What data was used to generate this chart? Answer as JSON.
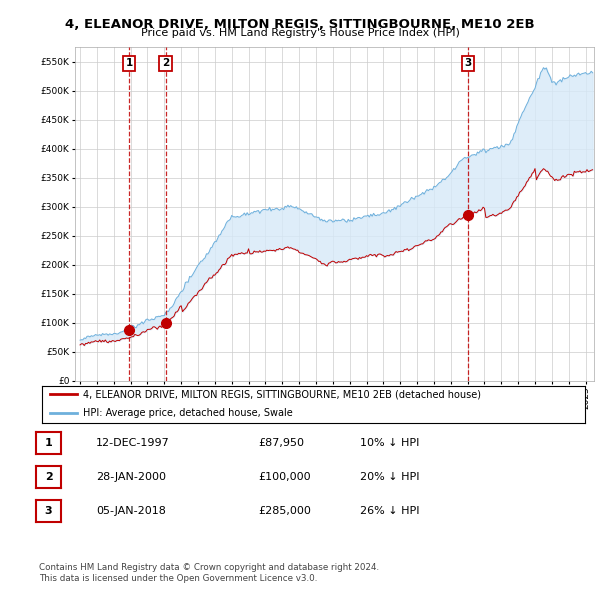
{
  "title_line1": "4, ELEANOR DRIVE, MILTON REGIS, SITTINGBOURNE, ME10 2EB",
  "title_line2": "Price paid vs. HM Land Registry's House Price Index (HPI)",
  "hpi_color": "#6EB0DC",
  "hpi_fill_color": "#D6E9F8",
  "price_color": "#C00000",
  "vline_color": "#C00000",
  "background_color": "#FFFFFF",
  "grid_color": "#CCCCCC",
  "purchases": [
    {
      "date_num": 1997.917,
      "price": 87950,
      "label": "1",
      "date_str": "12-DEC-1997",
      "price_str": "£87,950",
      "hpi_rel": "10% ↓ HPI"
    },
    {
      "date_num": 2000.083,
      "price": 100000,
      "label": "2",
      "date_str": "28-JAN-2000",
      "price_str": "£100,000",
      "hpi_rel": "20% ↓ HPI"
    },
    {
      "date_num": 2018.03,
      "price": 285000,
      "label": "3",
      "date_str": "05-JAN-2018",
      "price_str": "£285,000",
      "hpi_rel": "26% ↓ HPI"
    }
  ],
  "legend_line1": "4, ELEANOR DRIVE, MILTON REGIS, SITTINGBOURNE, ME10 2EB (detached house)",
  "legend_line2": "HPI: Average price, detached house, Swale",
  "footer1": "Contains HM Land Registry data © Crown copyright and database right 2024.",
  "footer2": "This data is licensed under the Open Government Licence v3.0.",
  "ylim": [
    0,
    575000
  ],
  "yticks": [
    0,
    50000,
    100000,
    150000,
    200000,
    250000,
    300000,
    350000,
    400000,
    450000,
    500000,
    550000
  ],
  "xmin": 1994.7,
  "xmax": 2025.5
}
